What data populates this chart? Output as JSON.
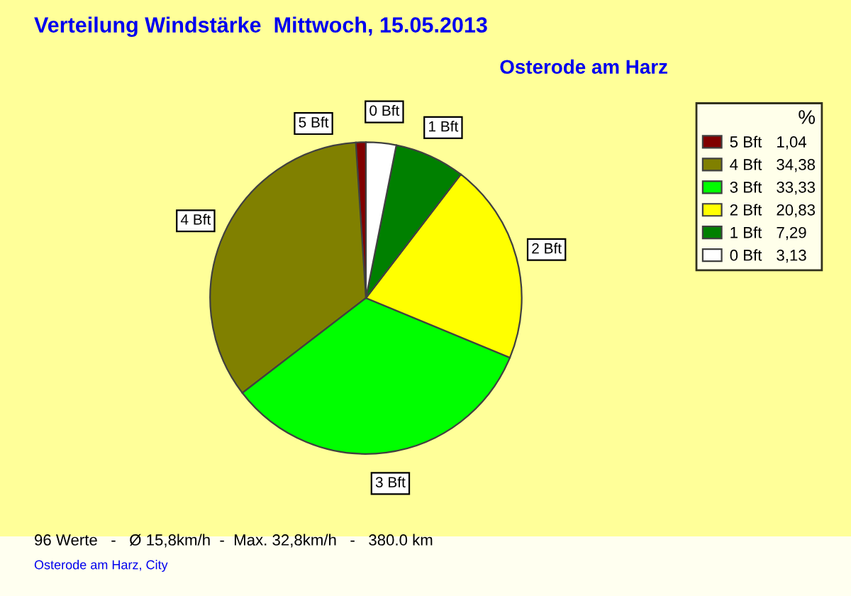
{
  "chart_data": {
    "type": "pie",
    "title": "Verteilung Windstärke  Mittwoch, 15.05.2013",
    "subtitle": "Osterode am Harz",
    "categories": [
      "5 Bft",
      "4 Bft",
      "3 Bft",
      "2 Bft",
      "1 Bft",
      "0 Bft"
    ],
    "values": [
      1.04,
      34.38,
      33.33,
      20.83,
      7.29,
      3.13
    ],
    "value_labels": [
      "1,04",
      "34,38",
      "33,33",
      "20,83",
      "7,29",
      "3,13"
    ],
    "colors": [
      "#800000",
      "#808000",
      "#00ff00",
      "#ffff00",
      "#008000",
      "#ffffff"
    ],
    "legend": "top right",
    "legend_title": "%",
    "annotations": [
      "96 Werte   -   Ø 15,8km/h  -  Max. 32,8km/h   -   380.0 km",
      "Osterode am Harz, City"
    ]
  }
}
